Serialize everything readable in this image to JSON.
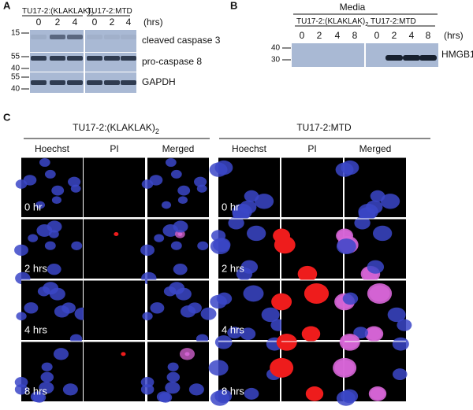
{
  "panel_a": {
    "label": "A",
    "groups": [
      {
        "text": "TU17-2:(KLAKLAK)",
        "subscript": "2"
      },
      {
        "text": "TU17-2:MTD"
      }
    ],
    "times": [
      "0",
      "2",
      "4"
    ],
    "unit": "(hrs)",
    "blots": [
      {
        "name": "cleaved caspase 3",
        "markers": [
          "15"
        ]
      },
      {
        "name": "pro-caspase 8",
        "markers": [
          "55",
          "40"
        ]
      },
      {
        "name": "GAPDH",
        "markers": [
          "55",
          "40"
        ]
      }
    ]
  },
  "panel_b": {
    "label": "B",
    "title": "Media",
    "groups": [
      {
        "text": "TU17-2:(KLAKLAK)",
        "subscript": "2"
      },
      {
        "text": "TU17-2:MTD"
      }
    ],
    "times": [
      "0",
      "2",
      "4",
      "8"
    ],
    "unit": "(hrs)",
    "blot": {
      "name": "HMGB1",
      "markers": [
        "40",
        "30"
      ]
    }
  },
  "panel_c": {
    "label": "C",
    "groups": [
      {
        "text": "TU17-2:(KLAKLAK)",
        "subscript": "2"
      },
      {
        "text": "TU17-2:MTD"
      }
    ],
    "columns": [
      "Hoechst",
      "PI",
      "Merged"
    ],
    "rows": [
      "0 hr",
      "2 hrs",
      "4 hrs",
      "8 hrs"
    ]
  }
}
